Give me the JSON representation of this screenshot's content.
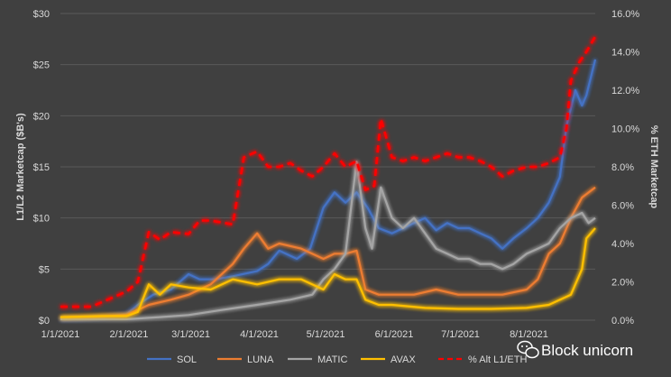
{
  "chart_data": {
    "type": "line",
    "title": "",
    "xlabel": "",
    "ylabel": "L1/L2 Marketcap ($B's)",
    "y2label": "% ETH Marketcap",
    "ylim": [
      0,
      30
    ],
    "y2lim": [
      0,
      0.16
    ],
    "yticks": [
      "$0",
      "$5",
      "$10",
      "$15",
      "$20",
      "$25",
      "$30"
    ],
    "y2ticks": [
      "0.0%",
      "2.0%",
      "4.0%",
      "6.0%",
      "8.0%",
      "10.0%",
      "12.0%",
      "14.0%",
      "16.0%"
    ],
    "xticks": [
      "1/1/2021",
      "2/1/2021",
      "3/1/2021",
      "4/1/2021",
      "5/1/2021",
      "6/1/2021",
      "7/1/2021",
      "8/1/2021"
    ],
    "x_start": "2021-01-01",
    "x_end": "2021-08-31",
    "grid": "horizontal",
    "legend_position": "bottom",
    "series": [
      {
        "name": "SOL",
        "color": "#4472C4",
        "axis": "left",
        "style": "solid",
        "points": [
          [
            "2021-01-01",
            0.1
          ],
          [
            "2021-01-10",
            0.15
          ],
          [
            "2021-01-20",
            0.3
          ],
          [
            "2021-01-31",
            0.6
          ],
          [
            "2021-02-05",
            1.5
          ],
          [
            "2021-02-12",
            2.5
          ],
          [
            "2021-02-20",
            3.0
          ],
          [
            "2021-02-28",
            4.5
          ],
          [
            "2021-03-05",
            4.0
          ],
          [
            "2021-03-12",
            4.0
          ],
          [
            "2021-03-20",
            4.3
          ],
          [
            "2021-03-31",
            4.8
          ],
          [
            "2021-04-05",
            5.5
          ],
          [
            "2021-04-10",
            6.8
          ],
          [
            "2021-04-18",
            6.0
          ],
          [
            "2021-04-24",
            7.0
          ],
          [
            "2021-04-30",
            11.0
          ],
          [
            "2021-05-05",
            12.5
          ],
          [
            "2021-05-10",
            11.5
          ],
          [
            "2021-05-15",
            12.5
          ],
          [
            "2021-05-20",
            11.0
          ],
          [
            "2021-05-25",
            9.0
          ],
          [
            "2021-05-31",
            8.5
          ],
          [
            "2021-06-05",
            9.0
          ],
          [
            "2021-06-10",
            9.5
          ],
          [
            "2021-06-15",
            10.0
          ],
          [
            "2021-06-20",
            8.8
          ],
          [
            "2021-06-25",
            9.5
          ],
          [
            "2021-06-30",
            9.0
          ],
          [
            "2021-07-05",
            9.0
          ],
          [
            "2021-07-10",
            8.5
          ],
          [
            "2021-07-15",
            8.0
          ],
          [
            "2021-07-20",
            7.0
          ],
          [
            "2021-07-25",
            8.0
          ],
          [
            "2021-07-31",
            9.0
          ],
          [
            "2021-08-05",
            10.0
          ],
          [
            "2021-08-10",
            11.5
          ],
          [
            "2021-08-15",
            14.0
          ],
          [
            "2021-08-18",
            19.0
          ],
          [
            "2021-08-22",
            22.5
          ],
          [
            "2021-08-25",
            21.0
          ],
          [
            "2021-08-27",
            22.0
          ],
          [
            "2021-08-31",
            25.5
          ]
        ]
      },
      {
        "name": "LUNA",
        "color": "#ED7D31",
        "axis": "left",
        "style": "solid",
        "points": [
          [
            "2021-01-01",
            0.2
          ],
          [
            "2021-01-15",
            0.3
          ],
          [
            "2021-01-31",
            0.5
          ],
          [
            "2021-02-10",
            1.5
          ],
          [
            "2021-02-20",
            2.0
          ],
          [
            "2021-02-28",
            2.5
          ],
          [
            "2021-03-10",
            3.5
          ],
          [
            "2021-03-20",
            5.5
          ],
          [
            "2021-03-25",
            7.0
          ],
          [
            "2021-03-31",
            8.5
          ],
          [
            "2021-04-05",
            7.0
          ],
          [
            "2021-04-10",
            7.5
          ],
          [
            "2021-04-20",
            7.0
          ],
          [
            "2021-04-30",
            6.0
          ],
          [
            "2021-05-05",
            6.5
          ],
          [
            "2021-05-10",
            6.5
          ],
          [
            "2021-05-15",
            6.8
          ],
          [
            "2021-05-19",
            3.0
          ],
          [
            "2021-05-25",
            2.5
          ],
          [
            "2021-05-31",
            2.5
          ],
          [
            "2021-06-10",
            2.5
          ],
          [
            "2021-06-20",
            3.0
          ],
          [
            "2021-06-30",
            2.5
          ],
          [
            "2021-07-10",
            2.5
          ],
          [
            "2021-07-20",
            2.5
          ],
          [
            "2021-07-31",
            3.0
          ],
          [
            "2021-08-05",
            4.0
          ],
          [
            "2021-08-10",
            6.5
          ],
          [
            "2021-08-15",
            7.5
          ],
          [
            "2021-08-20",
            10.0
          ],
          [
            "2021-08-25",
            12.0
          ],
          [
            "2021-08-31",
            13.0
          ]
        ]
      },
      {
        "name": "MATIC",
        "color": "#A5A5A5",
        "axis": "left",
        "style": "solid",
        "points": [
          [
            "2021-01-01",
            0.1
          ],
          [
            "2021-01-31",
            0.1
          ],
          [
            "2021-02-15",
            0.3
          ],
          [
            "2021-02-28",
            0.5
          ],
          [
            "2021-03-15",
            1.0
          ],
          [
            "2021-03-31",
            1.5
          ],
          [
            "2021-04-15",
            2.0
          ],
          [
            "2021-04-25",
            2.5
          ],
          [
            "2021-04-30",
            4.0
          ],
          [
            "2021-05-05",
            5.0
          ],
          [
            "2021-05-10",
            6.5
          ],
          [
            "2021-05-15",
            15.5
          ],
          [
            "2021-05-19",
            9.0
          ],
          [
            "2021-05-22",
            7.0
          ],
          [
            "2021-05-26",
            13.0
          ],
          [
            "2021-05-31",
            10.0
          ],
          [
            "2021-06-05",
            9.0
          ],
          [
            "2021-06-10",
            10.0
          ],
          [
            "2021-06-15",
            8.5
          ],
          [
            "2021-06-20",
            7.0
          ],
          [
            "2021-06-25",
            6.5
          ],
          [
            "2021-06-30",
            6.0
          ],
          [
            "2021-07-05",
            6.0
          ],
          [
            "2021-07-10",
            5.5
          ],
          [
            "2021-07-15",
            5.5
          ],
          [
            "2021-07-20",
            5.0
          ],
          [
            "2021-07-25",
            5.5
          ],
          [
            "2021-07-31",
            6.5
          ],
          [
            "2021-08-05",
            7.0
          ],
          [
            "2021-08-10",
            7.5
          ],
          [
            "2021-08-15",
            9.0
          ],
          [
            "2021-08-20",
            10.0
          ],
          [
            "2021-08-25",
            10.5
          ],
          [
            "2021-08-28",
            9.5
          ],
          [
            "2021-08-31",
            10.0
          ]
        ]
      },
      {
        "name": "AVAX",
        "color": "#FFC000",
        "axis": "left",
        "style": "solid",
        "points": [
          [
            "2021-01-01",
            0.3
          ],
          [
            "2021-01-20",
            0.4
          ],
          [
            "2021-01-31",
            0.4
          ],
          [
            "2021-02-05",
            0.8
          ],
          [
            "2021-02-10",
            3.5
          ],
          [
            "2021-02-15",
            2.5
          ],
          [
            "2021-02-20",
            3.5
          ],
          [
            "2021-02-28",
            3.2
          ],
          [
            "2021-03-10",
            3.0
          ],
          [
            "2021-03-20",
            4.0
          ],
          [
            "2021-03-31",
            3.5
          ],
          [
            "2021-04-10",
            4.0
          ],
          [
            "2021-04-20",
            4.0
          ],
          [
            "2021-04-30",
            3.0
          ],
          [
            "2021-05-05",
            4.5
          ],
          [
            "2021-05-10",
            4.0
          ],
          [
            "2021-05-15",
            4.0
          ],
          [
            "2021-05-19",
            2.0
          ],
          [
            "2021-05-25",
            1.5
          ],
          [
            "2021-05-31",
            1.5
          ],
          [
            "2021-06-15",
            1.2
          ],
          [
            "2021-06-30",
            1.1
          ],
          [
            "2021-07-15",
            1.1
          ],
          [
            "2021-07-31",
            1.2
          ],
          [
            "2021-08-10",
            1.5
          ],
          [
            "2021-08-20",
            2.5
          ],
          [
            "2021-08-25",
            5.0
          ],
          [
            "2021-08-27",
            8.0
          ],
          [
            "2021-08-31",
            9.0
          ]
        ]
      },
      {
        "name": "% Alt L1/ETH",
        "color": "#FF0000",
        "axis": "right",
        "style": "dashed",
        "points": [
          [
            "2021-01-01",
            0.007
          ],
          [
            "2021-01-15",
            0.007
          ],
          [
            "2021-01-31",
            0.015
          ],
          [
            "2021-02-05",
            0.02
          ],
          [
            "2021-02-10",
            0.046
          ],
          [
            "2021-02-15",
            0.042
          ],
          [
            "2021-02-20",
            0.046
          ],
          [
            "2021-02-28",
            0.045
          ],
          [
            "2021-03-05",
            0.052
          ],
          [
            "2021-03-10",
            0.052
          ],
          [
            "2021-03-20",
            0.05
          ],
          [
            "2021-03-25",
            0.085
          ],
          [
            "2021-03-31",
            0.088
          ],
          [
            "2021-04-05",
            0.08
          ],
          [
            "2021-04-10",
            0.08
          ],
          [
            "2021-04-15",
            0.082
          ],
          [
            "2021-04-20",
            0.078
          ],
          [
            "2021-04-25",
            0.075
          ],
          [
            "2021-04-30",
            0.08
          ],
          [
            "2021-05-05",
            0.087
          ],
          [
            "2021-05-10",
            0.08
          ],
          [
            "2021-05-15",
            0.083
          ],
          [
            "2021-05-19",
            0.068
          ],
          [
            "2021-05-23",
            0.07
          ],
          [
            "2021-05-26",
            0.105
          ],
          [
            "2021-05-31",
            0.085
          ],
          [
            "2021-06-05",
            0.083
          ],
          [
            "2021-06-10",
            0.085
          ],
          [
            "2021-06-15",
            0.083
          ],
          [
            "2021-06-20",
            0.085
          ],
          [
            "2021-06-25",
            0.087
          ],
          [
            "2021-06-30",
            0.085
          ],
          [
            "2021-07-05",
            0.085
          ],
          [
            "2021-07-10",
            0.083
          ],
          [
            "2021-07-15",
            0.08
          ],
          [
            "2021-07-20",
            0.075
          ],
          [
            "2021-07-25",
            0.078
          ],
          [
            "2021-07-31",
            0.08
          ],
          [
            "2021-08-05",
            0.08
          ],
          [
            "2021-08-10",
            0.082
          ],
          [
            "2021-08-15",
            0.085
          ],
          [
            "2021-08-18",
            0.1
          ],
          [
            "2021-08-20",
            0.125
          ],
          [
            "2021-08-24",
            0.135
          ],
          [
            "2021-08-27",
            0.14
          ],
          [
            "2021-08-31",
            0.148
          ]
        ]
      }
    ]
  },
  "watermark": {
    "text": "Block unicorn",
    "icon": "wechat-icon"
  }
}
